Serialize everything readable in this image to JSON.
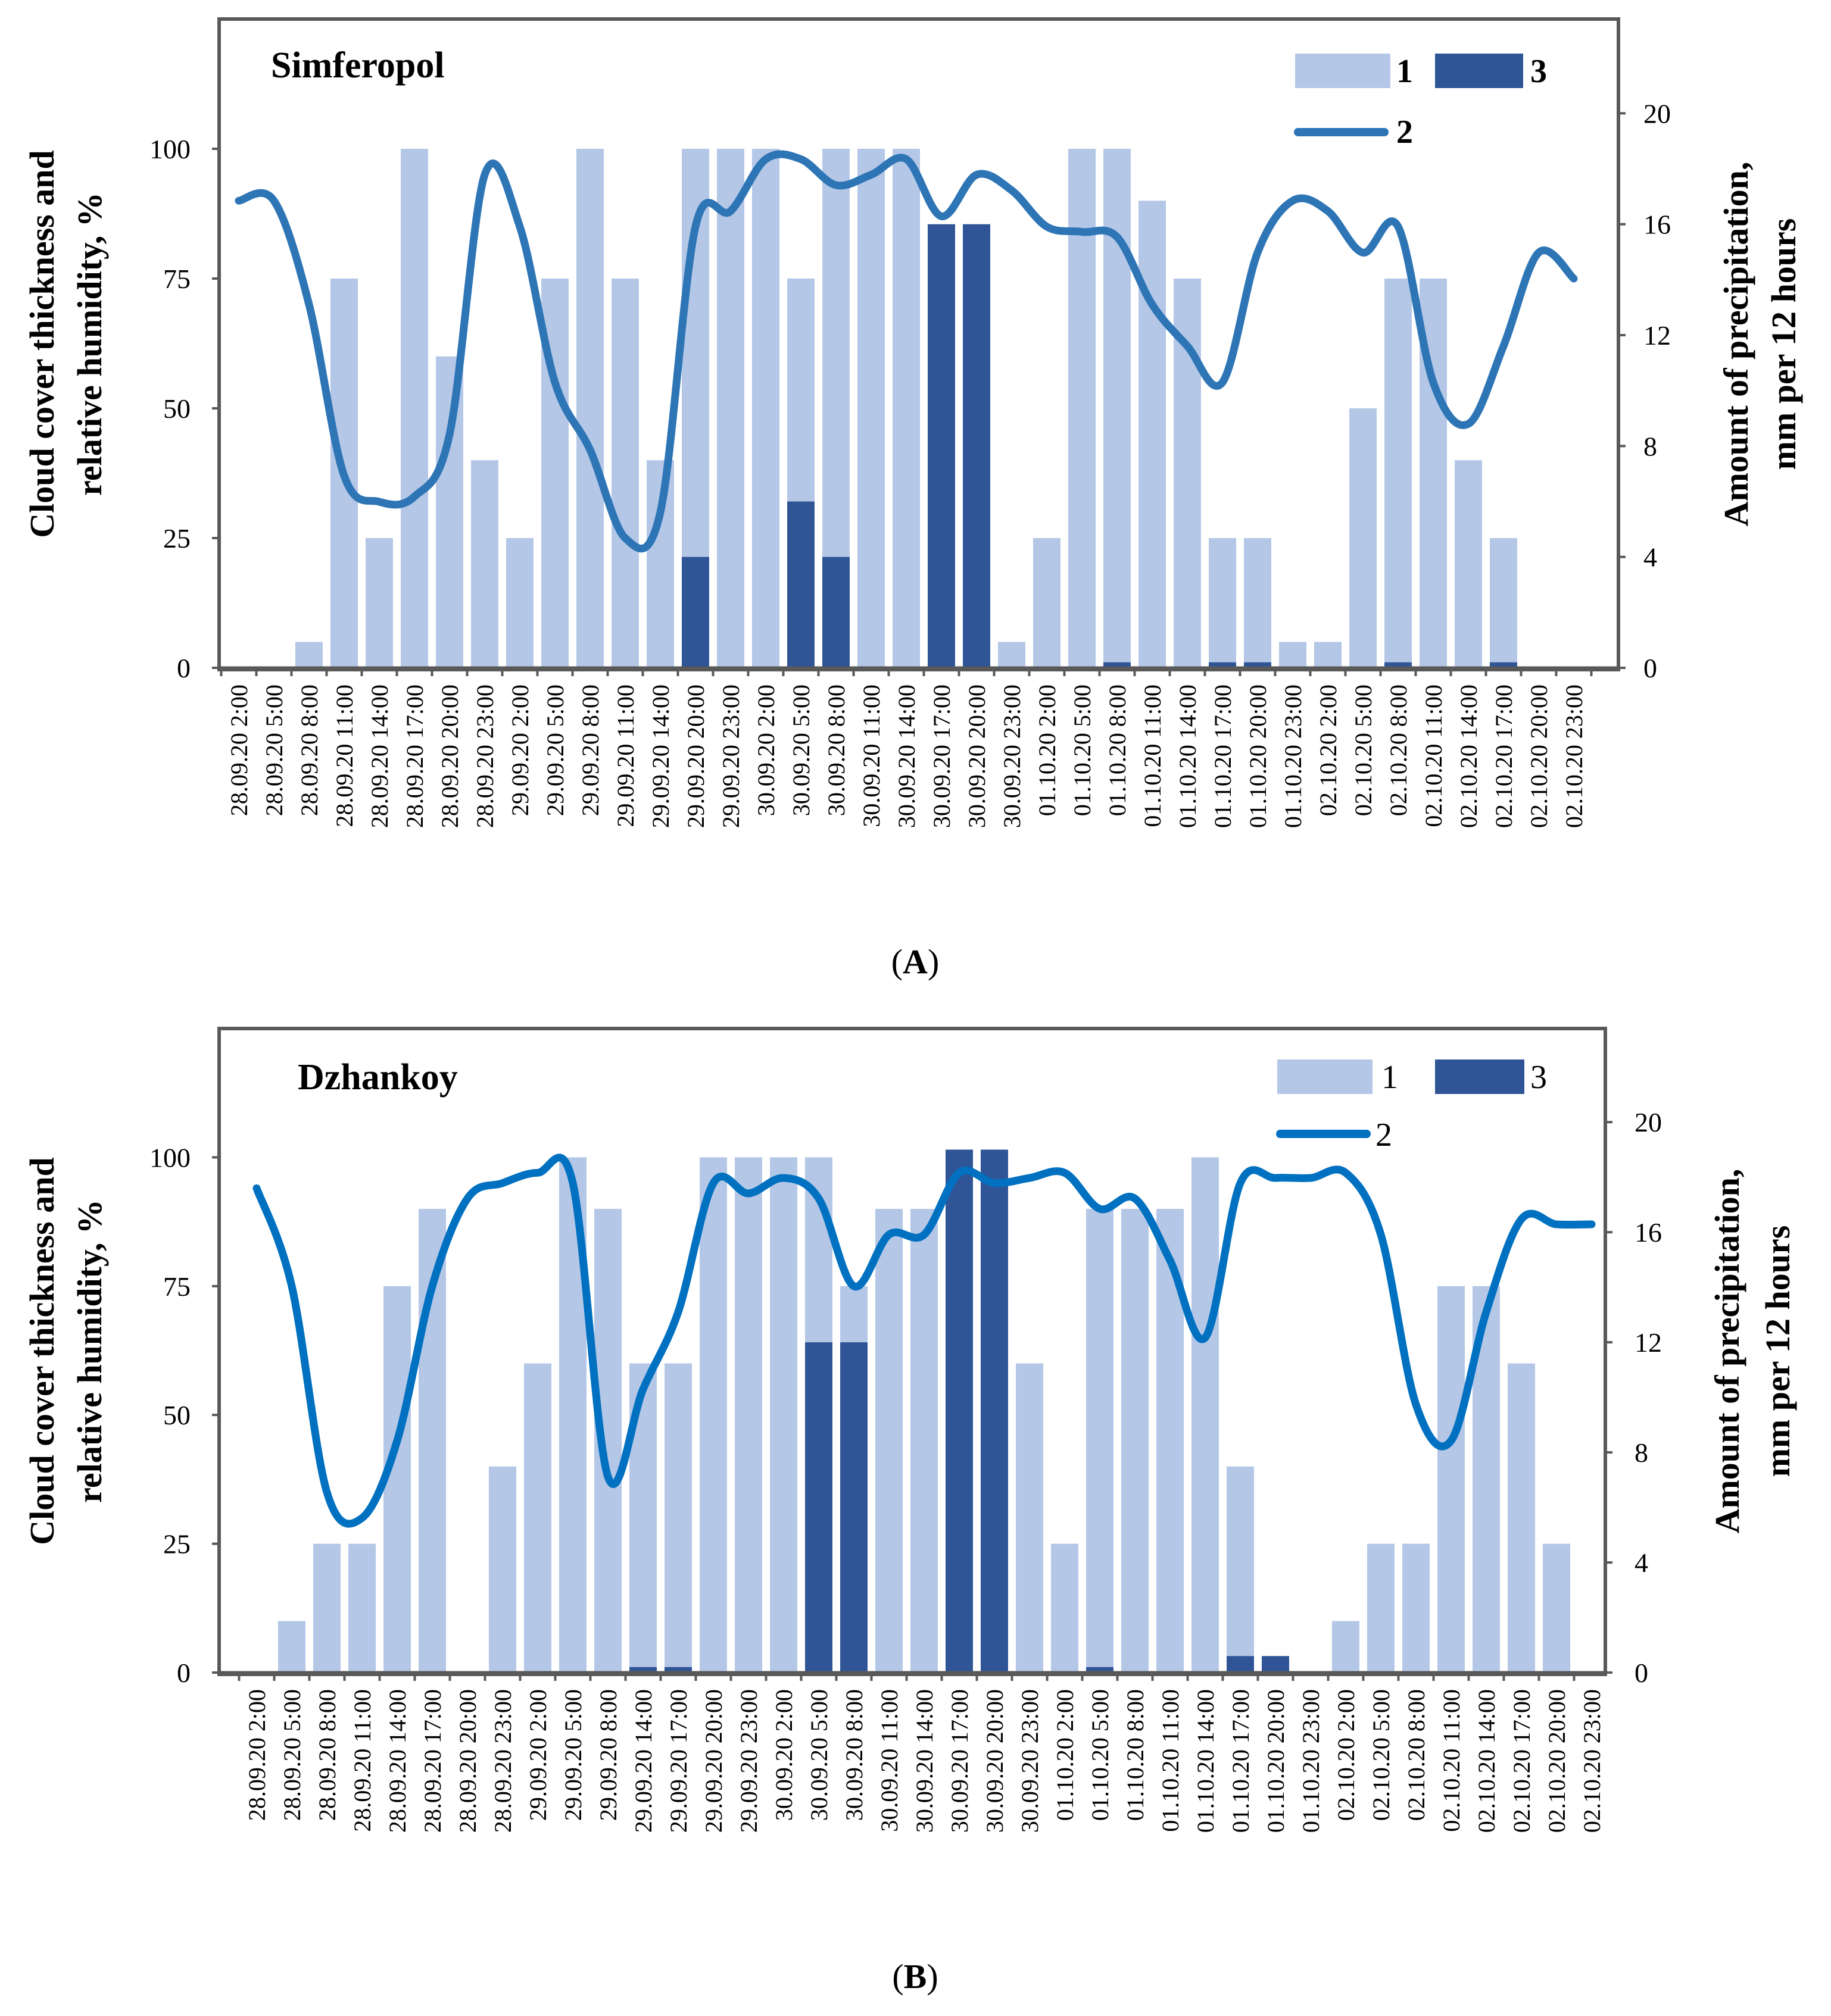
{
  "colors": {
    "cloud": "#b4c7e7",
    "precip": "#2f5597",
    "humidity": "#2e75b6"
  },
  "chart_data": [
    {
      "type": "bar",
      "panel": "A",
      "title": "Simferopol",
      "caption_letter": "A",
      "ylabel_left": [
        "Cloud cover thickness and",
        "relative humidity, %"
      ],
      "ylabel_right": [
        "Amount of precipitation,",
        "mm per 12 hours"
      ],
      "ylim_left": [
        0,
        125
      ],
      "ylim_right": [
        0,
        23.4
      ],
      "yticks_left": [
        "0",
        "25",
        "50",
        "75",
        "100"
      ],
      "yticks_right": [
        "0",
        "4",
        "8",
        "12",
        "16",
        "20"
      ],
      "legend": {
        "cloud": "1",
        "humidity": "2",
        "precip": "3"
      },
      "categories": [
        "28.09.20 2:00",
        "28.09.20 5:00",
        "28.09.20 8:00",
        "28.09.20 11:00",
        "28.09.20 14:00",
        "28.09.20 17:00",
        "28.09.20 20:00",
        "28.09.20 23:00",
        "29.09.20 2:00",
        "29.09.20 5:00",
        "29.09.20 8:00",
        "29.09.20 11:00",
        "29.09.20 14:00",
        "29.09.20 20:00",
        "29.09.20 23:00",
        "30.09.20 2:00",
        "30.09.20 5:00",
        "30.09.20 8:00",
        "30.09.20 11:00",
        "30.09.20 14:00",
        "30.09.20 17:00",
        "30.09.20 20:00",
        "30.09.20 23:00",
        "01.10.20 2:00",
        "01.10.20 5:00",
        "01.10.20 8:00",
        "01.10.20 11:00",
        "01.10.20 14:00",
        "01.10.20 17:00",
        "01.10.20 20:00",
        "01.10.20 23:00",
        "02.10.20 2:00",
        "02.10.20 5:00",
        "02.10.20 8:00",
        "02.10.20 11:00",
        "02.10.20 14:00",
        "02.10.20 17:00",
        "02.10.20 20:00",
        "02.10.20 23:00"
      ],
      "series": [
        {
          "name": "1",
          "role": "cloud",
          "axis": "left",
          "values": [
            0,
            0,
            5,
            75,
            25,
            100,
            60,
            40,
            25,
            75,
            100,
            75,
            40,
            100,
            100,
            100,
            75,
            100,
            100,
            100,
            80,
            0,
            5,
            25,
            100,
            100,
            90,
            75,
            25,
            25,
            5,
            5,
            50,
            75,
            75,
            40,
            25,
            0,
            0
          ]
        },
        {
          "name": "2",
          "role": "humidity",
          "axis": "left",
          "values": [
            90,
            90,
            70,
            37,
            32,
            33,
            45,
            95,
            85,
            55,
            42,
            25,
            30,
            85,
            88,
            98,
            98,
            93,
            95,
            98,
            87,
            95,
            92,
            85,
            84,
            83,
            70,
            62,
            55,
            80,
            90,
            88,
            80,
            85,
            55,
            47,
            62,
            80,
            75
          ]
        },
        {
          "name": "3",
          "role": "precip",
          "axis": "right",
          "values": [
            0,
            0,
            0,
            0,
            0,
            0,
            0,
            0,
            0,
            0,
            0,
            0,
            0,
            4,
            0,
            0,
            6,
            4,
            0,
            0,
            16,
            16,
            0,
            0,
            0,
            0.2,
            0,
            0,
            0.2,
            0.2,
            0,
            0,
            0,
            0.2,
            0,
            0,
            0.2,
            0,
            0
          ]
        }
      ]
    },
    {
      "type": "bar",
      "panel": "B",
      "title": "Dzhankoy",
      "caption_letter": "B",
      "ylabel_left": [
        "Cloud cover thickness and",
        "relative humidity, %"
      ],
      "ylabel_right": [
        "Amount of precipitation,",
        "mm per 12 hours"
      ],
      "ylim_left": [
        0,
        125
      ],
      "ylim_right": [
        0,
        23.4
      ],
      "yticks_left": [
        "0",
        "25",
        "50",
        "75",
        "100"
      ],
      "yticks_right": [
        "0",
        "4",
        "8",
        "12",
        "16",
        "20"
      ],
      "legend": {
        "cloud": "1",
        "humidity": "2",
        "precip": "3"
      },
      "categories": [
        "28.09.20 2:00",
        "28.09.20 5:00",
        "28.09.20 8:00",
        "28.09.20 11:00",
        "28.09.20 14:00",
        "28.09.20 17:00",
        "28.09.20 20:00",
        "28.09.20 23:00",
        "29.09.20 2:00",
        "29.09.20 5:00",
        "29.09.20 8:00",
        "29.09.20 14:00",
        "29.09.20 17:00",
        "29.09.20 20:00",
        "29.09.20 23:00",
        "30.09.20 2:00",
        "30.09.20 5:00",
        "30.09.20 8:00",
        "30.09.20 11:00",
        "30.09.20 14:00",
        "30.09.20 17:00",
        "30.09.20 20:00",
        "30.09.20 23:00",
        "01.10.20 2:00",
        "01.10.20 5:00",
        "01.10.20 8:00",
        "01.10.20 11:00",
        "01.10.20 14:00",
        "01.10.20 17:00",
        "01.10.20 20:00",
        "01.10.20 23:00",
        "02.10.20 2:00",
        "02.10.20 5:00",
        "02.10.20 8:00",
        "02.10.20 11:00",
        "02.10.20 14:00",
        "02.10.20 17:00",
        "02.10.20 20:00",
        "02.10.20 23:00"
      ],
      "series": [
        {
          "name": "1",
          "role": "cloud",
          "axis": "left",
          "values": [
            0,
            10,
            25,
            25,
            75,
            90,
            0,
            40,
            60,
            100,
            90,
            60,
            60,
            100,
            100,
            100,
            100,
            75,
            90,
            90,
            90,
            100,
            60,
            25,
            90,
            90,
            90,
            100,
            40,
            0,
            0,
            10,
            25,
            25,
            75,
            75,
            60,
            25,
            0
          ]
        },
        {
          "name": "2",
          "role": "humidity",
          "axis": "left",
          "values": [
            94,
            75,
            35,
            30,
            45,
            75,
            92,
            95,
            97,
            95,
            38,
            55,
            70,
            95,
            93,
            96,
            92,
            75,
            85,
            85,
            97,
            95,
            96,
            97,
            90,
            92,
            80,
            65,
            95,
            96,
            96,
            97,
            85,
            52,
            45,
            70,
            88,
            87,
            87
          ]
        },
        {
          "name": "3",
          "role": "precip",
          "axis": "right",
          "values": [
            0,
            0,
            0,
            0,
            0,
            0,
            0,
            0,
            0,
            0,
            0,
            0.2,
            0.2,
            0,
            0,
            0,
            12,
            12,
            0,
            0,
            19,
            19,
            0,
            0,
            0.2,
            0,
            0,
            0,
            0.6,
            0.6,
            0,
            0,
            0,
            0,
            0,
            0,
            0,
            0,
            0
          ]
        }
      ]
    }
  ]
}
